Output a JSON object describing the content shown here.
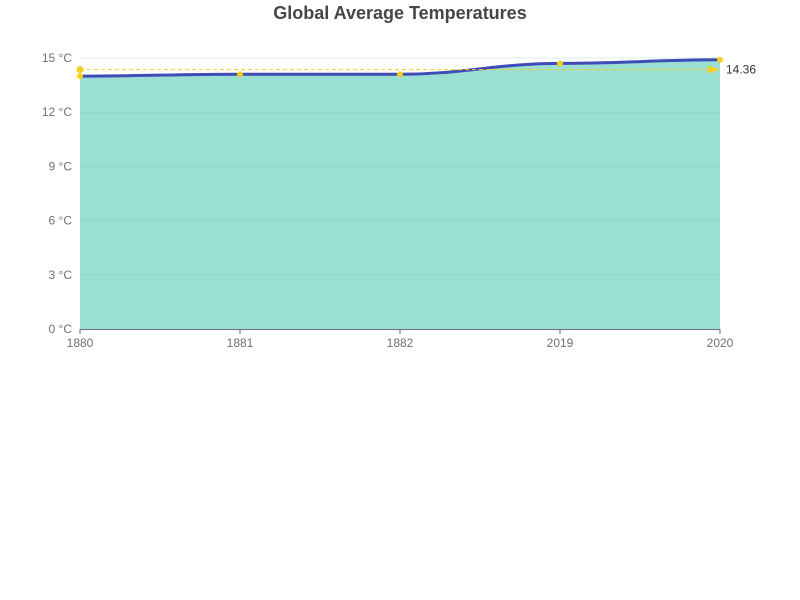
{
  "chart_data": {
    "type": "area",
    "title": "Global Average Temperatures",
    "xlabel": "",
    "ylabel": "",
    "categories": [
      "1880",
      "1881",
      "1882",
      "2019",
      "2020"
    ],
    "series": [
      {
        "values": [
          14.0,
          14.1,
          14.1,
          14.7,
          14.9
        ],
        "line_color": "#3f4bb6",
        "area_color": "#9adfd2",
        "point_color": "#f8cf1c"
      }
    ],
    "y_unit_suffix": " °C",
    "y_ticks": [
      0,
      3,
      6,
      9,
      12,
      15
    ],
    "ylim": [
      0,
      15
    ],
    "grid": true,
    "grid_color": "#85c9c1",
    "axis_color": "#6e7079",
    "mark_line": {
      "type": "average",
      "value": 14.36,
      "label": "14.36",
      "color": "#f8cf1c"
    }
  }
}
